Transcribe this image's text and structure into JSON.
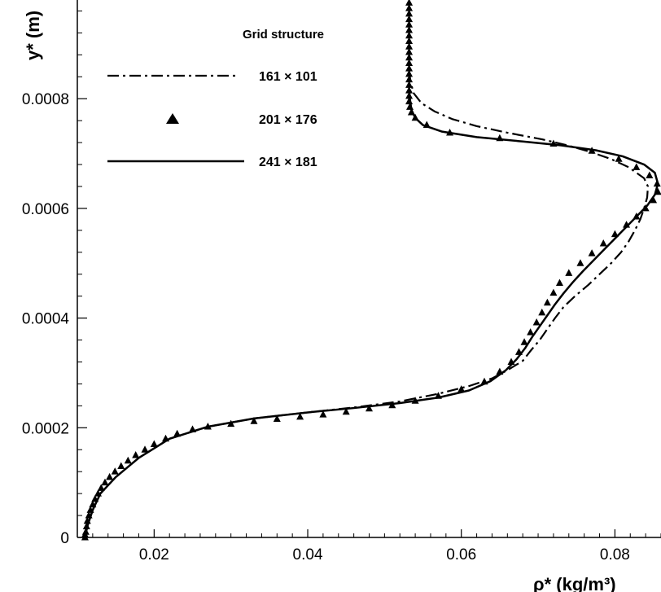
{
  "chart_data": {
    "type": "line",
    "title": "",
    "xlabel": "ρ* (kg/m³)",
    "ylabel": "y* (m)",
    "xlim": [
      0.01,
      0.086
    ],
    "ylim": [
      0,
      0.00098
    ],
    "xticks": [
      0.02,
      0.04,
      0.06,
      0.08
    ],
    "xtick_labels": [
      "0.02",
      "0.04",
      "0.06",
      "0.08"
    ],
    "yticks": [
      0,
      0.0002,
      0.0004,
      0.0006,
      0.0008
    ],
    "ytick_labels": [
      "0",
      "0.0002",
      "0.0004",
      "0.0006",
      "0.0008"
    ],
    "grid": false,
    "legend": {
      "title": "Grid structure",
      "position": "top-left"
    },
    "series": [
      {
        "name": "161 × 101",
        "style": "dash-dot line",
        "x": [
          0.011,
          0.0113,
          0.012,
          0.013,
          0.015,
          0.018,
          0.022,
          0.027,
          0.033,
          0.04,
          0.046,
          0.052,
          0.057,
          0.061,
          0.064,
          0.066,
          0.068,
          0.069,
          0.0702,
          0.0712,
          0.0722,
          0.0733,
          0.0748,
          0.0765,
          0.078,
          0.0795,
          0.0808,
          0.0818,
          0.0826,
          0.0833,
          0.0838,
          0.0842,
          0.0843,
          0.0838,
          0.0818,
          0.0795,
          0.0768,
          0.0738,
          0.0705,
          0.066,
          0.062,
          0.0588,
          0.0565,
          0.0548,
          0.0538,
          0.0534,
          0.0532
        ],
        "y": [
          0,
          2e-05,
          5e-05,
          8e-05,
          0.00011,
          0.000145,
          0.00018,
          0.000202,
          0.000217,
          0.000228,
          0.000237,
          0.000248,
          0.000262,
          0.000276,
          0.00029,
          0.000305,
          0.000322,
          0.00034,
          0.00036,
          0.00038,
          0.0004,
          0.00042,
          0.00044,
          0.00046,
          0.00048,
          0.0005,
          0.00052,
          0.00054,
          0.00056,
          0.00058,
          0.0006,
          0.00062,
          0.00064,
          0.000655,
          0.000675,
          0.00069,
          0.000703,
          0.000715,
          0.000726,
          0.000738,
          0.00075,
          0.000763,
          0.000777,
          0.000792,
          0.00081,
          0.00083,
          0.00085
        ]
      },
      {
        "name": "201 × 176",
        "style": "triangle markers",
        "x": [
          0.0532,
          0.0532,
          0.0532,
          0.0532,
          0.0532,
          0.0532,
          0.0532,
          0.0532,
          0.0532,
          0.0532,
          0.0532,
          0.0532,
          0.0532,
          0.0532,
          0.0532,
          0.0532,
          0.0532,
          0.0532,
          0.0532,
          0.0533,
          0.0535,
          0.054,
          0.0555,
          0.0585,
          0.065,
          0.072,
          0.077,
          0.0805,
          0.0828,
          0.0845,
          0.0855,
          0.0856,
          0.085,
          0.084,
          0.0828,
          0.0815,
          0.08,
          0.0785,
          0.077,
          0.0755,
          0.074,
          0.0728,
          0.072,
          0.0712,
          0.0705,
          0.0698,
          0.069,
          0.0682,
          0.0675,
          0.0665,
          0.065,
          0.063,
          0.06,
          0.057,
          0.054,
          0.051,
          0.048,
          0.045,
          0.042,
          0.039,
          0.036,
          0.033,
          0.03,
          0.027,
          0.025,
          0.023,
          0.0215,
          0.02,
          0.0188,
          0.0176,
          0.0166,
          0.0157,
          0.0149,
          0.0142,
          0.0136,
          0.0131,
          0.0127,
          0.0123,
          0.012,
          0.0117,
          0.0115,
          0.0113,
          0.0112,
          0.0111,
          0.011,
          0.011
        ],
        "y": [
          0.000975,
          0.000965,
          0.000955,
          0.000945,
          0.000935,
          0.000925,
          0.000915,
          0.000905,
          0.000895,
          0.000885,
          0.000875,
          0.000865,
          0.000855,
          0.000845,
          0.000835,
          0.000825,
          0.000815,
          0.000805,
          0.000795,
          0.000785,
          0.000775,
          0.000765,
          0.000752,
          0.000738,
          0.000728,
          0.000718,
          0.000705,
          0.00069,
          0.000675,
          0.00066,
          0.000645,
          0.00063,
          0.000615,
          0.0006,
          0.000585,
          0.00057,
          0.000553,
          0.000536,
          0.000518,
          0.0005,
          0.000482,
          0.000464,
          0.000446,
          0.000428,
          0.00041,
          0.000392,
          0.000374,
          0.000356,
          0.000338,
          0.00032,
          0.000302,
          0.000284,
          0.00027,
          0.000258,
          0.000249,
          0.000241,
          0.000235,
          0.000229,
          0.000224,
          0.00022,
          0.000216,
          0.000212,
          0.000207,
          0.000202,
          0.000197,
          0.000189,
          0.00018,
          0.00017,
          0.00016,
          0.00015,
          0.00014,
          0.00013,
          0.00012,
          0.00011,
          0.0001,
          9e-05,
          8e-05,
          7e-05,
          6e-05,
          5e-05,
          4e-05,
          3e-05,
          2e-05,
          1e-05,
          5e-06,
          0
        ]
      },
      {
        "name": "241 × 181",
        "style": "solid line",
        "x": [
          0.011,
          0.0113,
          0.012,
          0.013,
          0.015,
          0.018,
          0.022,
          0.027,
          0.033,
          0.04,
          0.046,
          0.052,
          0.057,
          0.061,
          0.0638,
          0.0658,
          0.0672,
          0.0683,
          0.0692,
          0.0702,
          0.0712,
          0.0722,
          0.0733,
          0.0745,
          0.0758,
          0.0772,
          0.0786,
          0.08,
          0.0814,
          0.0828,
          0.0842,
          0.0852,
          0.0856,
          0.0852,
          0.0838,
          0.081,
          0.0775,
          0.073,
          0.068,
          0.062,
          0.0575,
          0.055,
          0.054,
          0.0535,
          0.0533,
          0.0532
        ],
        "y": [
          0,
          2e-05,
          5e-05,
          8e-05,
          0.00011,
          0.000145,
          0.00018,
          0.000202,
          0.000217,
          0.000228,
          0.000236,
          0.000245,
          0.000255,
          0.000268,
          0.000285,
          0.000305,
          0.000325,
          0.000345,
          0.000365,
          0.000385,
          0.000405,
          0.000425,
          0.000445,
          0.000465,
          0.000485,
          0.000505,
          0.000525,
          0.000545,
          0.000565,
          0.000585,
          0.000605,
          0.000625,
          0.000645,
          0.000665,
          0.00068,
          0.000695,
          0.000706,
          0.000715,
          0.000722,
          0.00073,
          0.00074,
          0.000752,
          0.000765,
          0.00078,
          0.0008,
          0.00082
        ]
      }
    ]
  }
}
